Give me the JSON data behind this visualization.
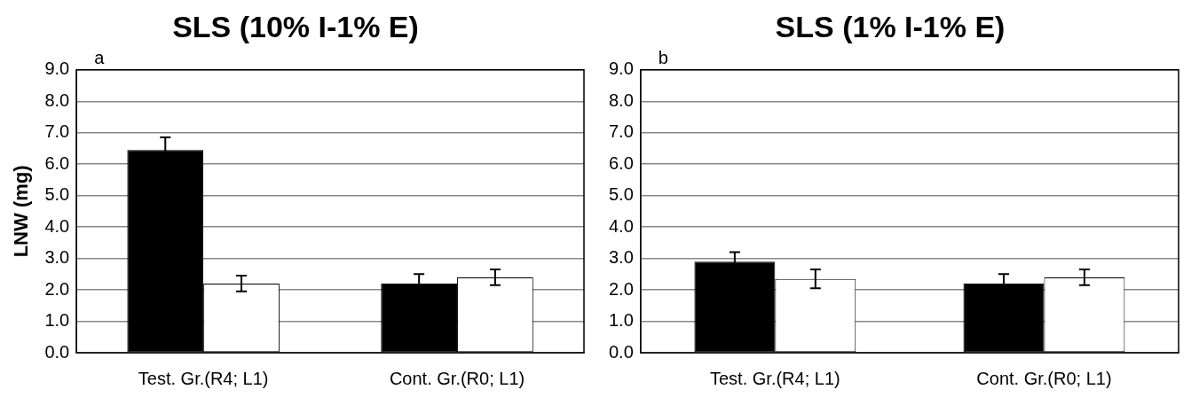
{
  "chart_data": [
    {
      "type": "bar",
      "title": "SLS (10% I-1% E)",
      "ylabel": "LNW (mg)",
      "annotations": [
        "a"
      ],
      "categories": [
        "Test. Gr.(R4; L1)",
        "Cont. Gr.(R0; L1)"
      ],
      "series": [
        {
          "color": "#000000",
          "values": [
            6.45,
            2.2
          ],
          "errors": [
            0.4,
            0.3
          ]
        },
        {
          "color": "#ffffff",
          "values": [
            2.2,
            2.4
          ],
          "errors": [
            0.25,
            0.25
          ]
        }
      ],
      "ylim": [
        0,
        9
      ],
      "yticks": [
        {
          "value": 0,
          "label": "0.0"
        },
        {
          "value": 1,
          "label": "1.0"
        },
        {
          "value": 2,
          "label": "2.0"
        },
        {
          "value": 3,
          "label": "3.0"
        },
        {
          "value": 4,
          "label": "4.0"
        },
        {
          "value": 5,
          "label": "5.0"
        },
        {
          "value": 6,
          "label": "6.0"
        },
        {
          "value": 7,
          "label": "7.0"
        },
        {
          "value": 8,
          "label": "8.0"
        },
        {
          "value": 9,
          "label": "9.0"
        }
      ],
      "grid": "y",
      "legend": false
    },
    {
      "type": "bar",
      "title": "SLS (1% I-1% E)",
      "annotations": [
        "b"
      ],
      "categories": [
        "Test. Gr.(R4; L1)",
        "Cont. Gr.(R0; L1)"
      ],
      "series": [
        {
          "color": "#000000",
          "values": [
            2.9,
            2.2
          ],
          "errors": [
            0.3,
            0.3
          ]
        },
        {
          "color": "#ffffff",
          "values": [
            2.35,
            2.4
          ],
          "errors": [
            0.3,
            0.25
          ]
        }
      ],
      "ylim": [
        0,
        9
      ],
      "yticks": [
        {
          "value": 0,
          "label": "0.0"
        },
        {
          "value": 1,
          "label": "1.0"
        },
        {
          "value": 2,
          "label": "2.0"
        },
        {
          "value": 3,
          "label": "3.0"
        },
        {
          "value": 4,
          "label": "4.0"
        },
        {
          "value": 5,
          "label": "5.0"
        },
        {
          "value": 6,
          "label": "6.0"
        },
        {
          "value": 7,
          "label": "7.0"
        },
        {
          "value": 8,
          "label": "8.0"
        },
        {
          "value": 9,
          "label": "9.0"
        }
      ],
      "grid": "y",
      "legend": false
    }
  ]
}
